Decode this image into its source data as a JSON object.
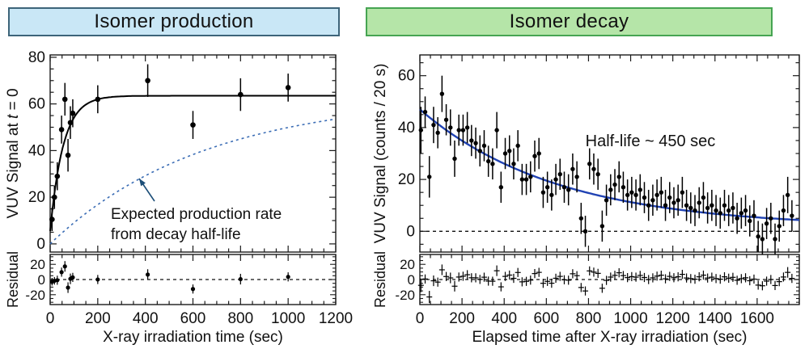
{
  "chart_data": [
    {
      "type": "scatter",
      "title": "Isomer production",
      "title_bg": "#c9e7f6",
      "title_border": "#3d6479",
      "xlabel": "X-ray irradiation time (sec)",
      "ylabel": "VUV Signal at t = 0",
      "ylabel_parts": [
        {
          "text": "VUV Signal at "
        },
        {
          "text": "t",
          "italic": true
        },
        {
          "text": " = 0"
        }
      ],
      "residual_ylabel": "Residual",
      "xlim": [
        0,
        1200
      ],
      "ylim": [
        -3.5,
        81
      ],
      "xticks": [
        0,
        200,
        400,
        600,
        800,
        1000,
        1200
      ],
      "xtick_labels": [
        0,
        200,
        400,
        600,
        800,
        1000,
        1200
      ],
      "xminor": 50,
      "yticks": [
        0,
        20,
        40,
        60,
        80
      ],
      "yminor": 5,
      "residual_ylim": [
        -33,
        33
      ],
      "residual_yticks": [
        20,
        0,
        -20
      ],
      "residual_yminor": 5,
      "grid": false,
      "zero_line": false,
      "marker_color": "#000000",
      "marker_radius": 3.3,
      "points": [
        [
          8,
          10.5,
          5
        ],
        [
          18,
          20,
          5
        ],
        [
          30,
          29,
          6
        ],
        [
          48,
          49,
          6
        ],
        [
          62,
          62,
          7
        ],
        [
          75,
          38,
          7
        ],
        [
          85,
          52,
          7
        ],
        [
          95,
          56,
          6
        ],
        [
          200,
          62,
          6
        ],
        [
          410,
          70,
          7
        ],
        [
          600,
          51,
          6
        ],
        [
          800,
          64,
          7
        ],
        [
          1000,
          67,
          6
        ]
      ],
      "fit_curve": {
        "kind": "saturation",
        "A": 63.5,
        "x0": 5,
        "tau": 55,
        "color": "#000000",
        "width": 2
      },
      "expected_curve": {
        "kind": "approach_halflife",
        "A": 63.5,
        "halflife": 450,
        "color": "#3b6db5",
        "dash": "3 4",
        "width": 1.6
      },
      "annotation": {
        "lines": [
          "Expected production rate",
          "from decay half-life"
        ],
        "color": "#1c4e78",
        "arrow": true
      },
      "residual_marker": "dot"
    },
    {
      "type": "scatter",
      "title": "Isomer decay",
      "title_bg": "#b5e5a8",
      "title_border": "#46a452",
      "xlabel": "Elapsed time after X-ray irradiation (sec)",
      "ylabel": "VUV Signal (counts / 20 s)",
      "ylabel_parts": [
        {
          "text": "VUV Signal (counts / 20 s)"
        }
      ],
      "residual_ylabel": "Residual",
      "xlim": [
        0,
        1800
      ],
      "ylim": [
        -8,
        68
      ],
      "xticks": [
        0,
        200,
        400,
        600,
        800,
        1000,
        1200,
        1400,
        1600,
        1800
      ],
      "xtick_labels": [
        0,
        200,
        400,
        600,
        800,
        1000,
        1200,
        1400,
        1600
      ],
      "xminor": 50,
      "yticks": [
        0,
        20,
        40,
        60
      ],
      "yminor": 5,
      "residual_ylim": [
        -33,
        33
      ],
      "residual_yticks": [
        20,
        0,
        -20
      ],
      "residual_yminor": 5,
      "grid": false,
      "zero_line": true,
      "marker_color": "#000000",
      "marker_radius": 2.7,
      "points": [
        [
          5,
          39,
          9
        ],
        [
          25,
          46,
          6
        ],
        [
          45,
          21,
          8
        ],
        [
          65,
          41,
          7
        ],
        [
          85,
          38,
          6
        ],
        [
          105,
          53,
          7
        ],
        [
          125,
          43,
          6
        ],
        [
          145,
          40,
          7
        ],
        [
          165,
          28,
          7
        ],
        [
          185,
          39,
          6
        ],
        [
          205,
          39,
          6
        ],
        [
          225,
          40,
          6
        ],
        [
          245,
          35,
          6
        ],
        [
          265,
          34,
          6
        ],
        [
          285,
          31,
          6
        ],
        [
          305,
          33,
          6
        ],
        [
          325,
          27,
          6
        ],
        [
          345,
          26,
          6
        ],
        [
          365,
          39,
          7
        ],
        [
          385,
          17,
          6
        ],
        [
          405,
          30,
          6
        ],
        [
          425,
          31,
          6
        ],
        [
          445,
          26,
          6
        ],
        [
          465,
          33,
          6
        ],
        [
          485,
          20,
          6
        ],
        [
          505,
          20,
          6
        ],
        [
          525,
          21,
          6
        ],
        [
          545,
          29,
          6
        ],
        [
          565,
          30,
          6
        ],
        [
          585,
          15,
          6
        ],
        [
          605,
          17,
          6
        ],
        [
          625,
          14,
          6
        ],
        [
          645,
          20,
          6
        ],
        [
          665,
          22,
          6
        ],
        [
          685,
          17,
          6
        ],
        [
          705,
          16,
          6
        ],
        [
          725,
          24,
          6
        ],
        [
          745,
          21,
          6
        ],
        [
          765,
          5,
          6
        ],
        [
          785,
          0,
          6
        ],
        [
          805,
          26,
          6
        ],
        [
          825,
          24,
          6
        ],
        [
          845,
          22,
          6
        ],
        [
          865,
          2,
          6
        ],
        [
          885,
          12,
          6
        ],
        [
          905,
          16,
          6
        ],
        [
          925,
          18,
          6
        ],
        [
          945,
          21,
          6
        ],
        [
          965,
          17,
          6
        ],
        [
          985,
          14,
          6
        ],
        [
          1005,
          15,
          6
        ],
        [
          1025,
          14,
          6
        ],
        [
          1045,
          16,
          6
        ],
        [
          1065,
          13,
          6
        ],
        [
          1085,
          10,
          6
        ],
        [
          1105,
          12,
          6
        ],
        [
          1125,
          14,
          6
        ],
        [
          1145,
          15,
          6
        ],
        [
          1165,
          10,
          6
        ],
        [
          1185,
          13,
          6
        ],
        [
          1205,
          11,
          6
        ],
        [
          1225,
          12,
          6
        ],
        [
          1245,
          15,
          6
        ],
        [
          1265,
          10,
          6
        ],
        [
          1285,
          9,
          6
        ],
        [
          1305,
          8,
          6
        ],
        [
          1325,
          11,
          6
        ],
        [
          1345,
          13,
          6
        ],
        [
          1365,
          9,
          6
        ],
        [
          1385,
          10,
          6
        ],
        [
          1405,
          8,
          6
        ],
        [
          1425,
          7,
          6
        ],
        [
          1445,
          10,
          6
        ],
        [
          1465,
          8,
          6
        ],
        [
          1485,
          9,
          6
        ],
        [
          1505,
          5,
          6
        ],
        [
          1525,
          7,
          6
        ],
        [
          1545,
          8,
          6
        ],
        [
          1565,
          4,
          6
        ],
        [
          1585,
          6,
          6
        ],
        [
          1605,
          -2,
          6
        ],
        [
          1625,
          -3,
          6
        ],
        [
          1645,
          3,
          6
        ],
        [
          1665,
          5,
          6
        ],
        [
          1685,
          -3,
          6
        ],
        [
          1705,
          2,
          6
        ],
        [
          1725,
          8,
          6
        ],
        [
          1745,
          14,
          7
        ],
        [
          1765,
          6,
          6
        ]
      ],
      "fit_curve": {
        "kind": "decay_halflife",
        "A": 45.5,
        "offset": 1.5,
        "halflife": 450,
        "color": "#2143b4",
        "width": 2.4
      },
      "annotation": {
        "lines": [
          "Half-life ~ 450 sec"
        ],
        "color": "#1c4e78",
        "arrow": false
      },
      "residual_marker": "plus"
    }
  ]
}
